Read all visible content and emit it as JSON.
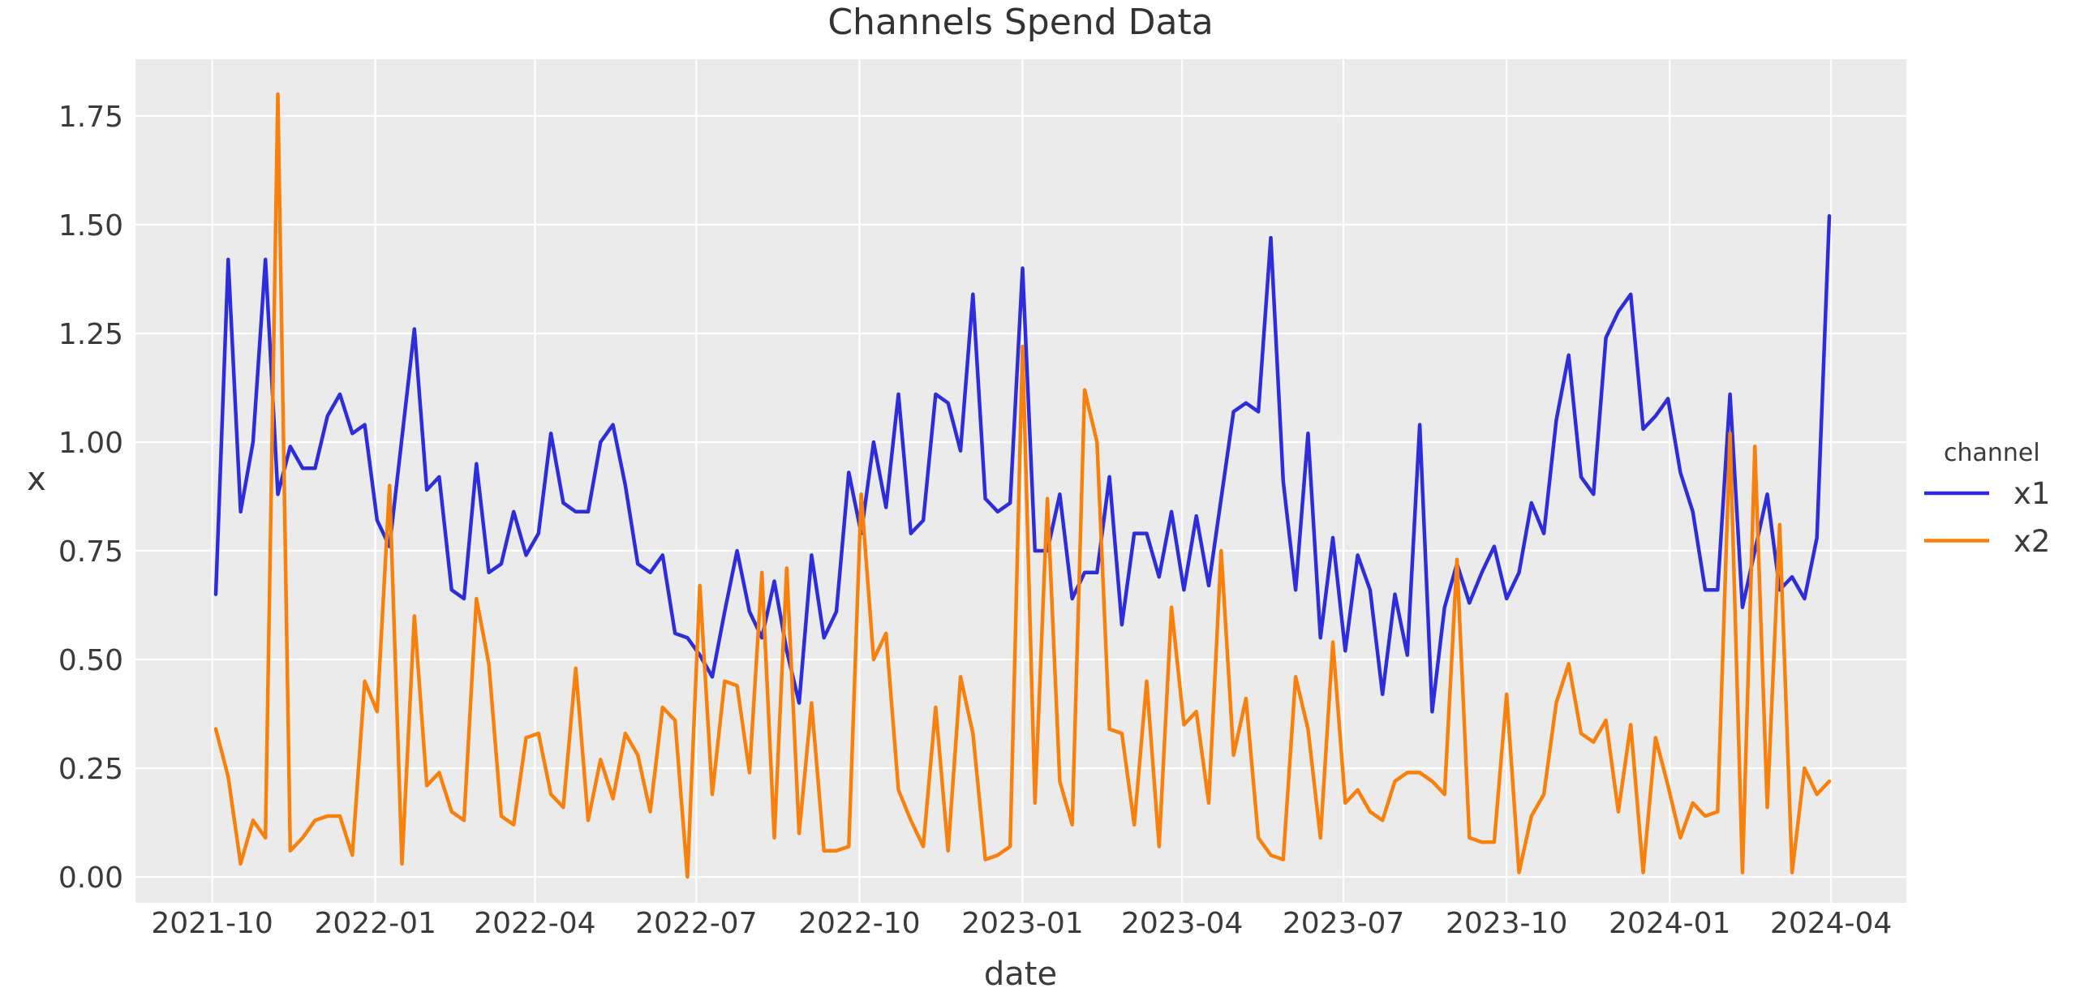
{
  "chart_data": {
    "type": "line",
    "title": "Channels Spend Data",
    "xlabel": "date",
    "ylabel": "x",
    "legend_title": "channel",
    "legend_position": "right-outside",
    "grid": "on",
    "panel_bg": "#ebebeb",
    "grid_color": "#ffffff",
    "ylim": [
      -0.06,
      1.88
    ],
    "xlim": [
      "2021-08-17",
      "2024-05-14"
    ],
    "yticks": [
      {
        "label": "0.00",
        "value": 0.0
      },
      {
        "label": "0.25",
        "value": 0.25
      },
      {
        "label": "0.50",
        "value": 0.5
      },
      {
        "label": "0.75",
        "value": 0.75
      },
      {
        "label": "1.00",
        "value": 1.0
      },
      {
        "label": "1.25",
        "value": 1.25
      },
      {
        "label": "1.50",
        "value": 1.5
      },
      {
        "label": "1.75",
        "value": 1.75
      }
    ],
    "xticks": [
      {
        "label": "2021-10",
        "date": "2021-10-01"
      },
      {
        "label": "2022-01",
        "date": "2022-01-01"
      },
      {
        "label": "2022-04",
        "date": "2022-04-01"
      },
      {
        "label": "2022-07",
        "date": "2022-07-01"
      },
      {
        "label": "2022-10",
        "date": "2022-10-01"
      },
      {
        "label": "2023-01",
        "date": "2023-01-01"
      },
      {
        "label": "2023-04",
        "date": "2023-04-01"
      },
      {
        "label": "2023-07",
        "date": "2023-07-01"
      },
      {
        "label": "2023-10",
        "date": "2023-10-01"
      },
      {
        "label": "2024-01",
        "date": "2024-01-01"
      },
      {
        "label": "2024-04",
        "date": "2024-04-01"
      }
    ],
    "dates": [
      "2021-10-03",
      "2021-10-10",
      "2021-10-17",
      "2021-10-24",
      "2021-10-31",
      "2021-11-07",
      "2021-11-14",
      "2021-11-21",
      "2021-11-28",
      "2021-12-05",
      "2021-12-12",
      "2021-12-19",
      "2021-12-26",
      "2022-01-02",
      "2022-01-09",
      "2022-01-16",
      "2022-01-23",
      "2022-01-30",
      "2022-02-06",
      "2022-02-13",
      "2022-02-20",
      "2022-02-27",
      "2022-03-06",
      "2022-03-13",
      "2022-03-20",
      "2022-03-27",
      "2022-04-03",
      "2022-04-10",
      "2022-04-17",
      "2022-04-24",
      "2022-05-01",
      "2022-05-08",
      "2022-05-15",
      "2022-05-22",
      "2022-05-29",
      "2022-06-05",
      "2022-06-12",
      "2022-06-19",
      "2022-06-26",
      "2022-07-03",
      "2022-07-10",
      "2022-07-17",
      "2022-07-24",
      "2022-07-31",
      "2022-08-07",
      "2022-08-14",
      "2022-08-21",
      "2022-08-28",
      "2022-09-04",
      "2022-09-11",
      "2022-09-18",
      "2022-09-25",
      "2022-10-02",
      "2022-10-09",
      "2022-10-16",
      "2022-10-23",
      "2022-10-30",
      "2022-11-06",
      "2022-11-13",
      "2022-11-20",
      "2022-11-27",
      "2022-12-04",
      "2022-12-11",
      "2022-12-18",
      "2022-12-25",
      "2023-01-01",
      "2023-01-08",
      "2023-01-15",
      "2023-01-22",
      "2023-01-29",
      "2023-02-05",
      "2023-02-12",
      "2023-02-19",
      "2023-02-26",
      "2023-03-05",
      "2023-03-12",
      "2023-03-19",
      "2023-03-26",
      "2023-04-02",
      "2023-04-09",
      "2023-04-16",
      "2023-04-23",
      "2023-04-30",
      "2023-05-07",
      "2023-05-14",
      "2023-05-21",
      "2023-05-28",
      "2023-06-04",
      "2023-06-11",
      "2023-06-18",
      "2023-06-25",
      "2023-07-02",
      "2023-07-09",
      "2023-07-16",
      "2023-07-23",
      "2023-07-30",
      "2023-08-06",
      "2023-08-13",
      "2023-08-20",
      "2023-08-27",
      "2023-09-03",
      "2023-09-10",
      "2023-09-17",
      "2023-09-24",
      "2023-10-01",
      "2023-10-08",
      "2023-10-15",
      "2023-10-22",
      "2023-10-29",
      "2023-11-05",
      "2023-11-12",
      "2023-11-19",
      "2023-11-26",
      "2023-12-03",
      "2023-12-10",
      "2023-12-17",
      "2023-12-24",
      "2023-12-31",
      "2024-01-07",
      "2024-01-14",
      "2024-01-21",
      "2024-01-28",
      "2024-02-04",
      "2024-02-11",
      "2024-02-18",
      "2024-02-25",
      "2024-03-03",
      "2024-03-10",
      "2024-03-17",
      "2024-03-24",
      "2024-03-31"
    ],
    "series": [
      {
        "name": "x1",
        "color": "#2d2ddc",
        "values": [
          0.65,
          1.42,
          0.84,
          1.0,
          1.42,
          0.88,
          0.99,
          0.94,
          0.94,
          1.06,
          1.11,
          1.02,
          1.04,
          0.82,
          0.76,
          1.01,
          1.26,
          0.89,
          0.92,
          0.66,
          0.64,
          0.95,
          0.7,
          0.72,
          0.84,
          0.74,
          0.79,
          1.02,
          0.86,
          0.84,
          0.84,
          1.0,
          1.04,
          0.9,
          0.72,
          0.7,
          0.74,
          0.56,
          0.55,
          0.51,
          0.46,
          0.61,
          0.75,
          0.61,
          0.55,
          0.68,
          0.52,
          0.4,
          0.74,
          0.55,
          0.61,
          0.93,
          0.79,
          1.0,
          0.85,
          1.11,
          0.79,
          0.82,
          1.11,
          1.09,
          0.98,
          1.34,
          0.87,
          0.84,
          0.86,
          1.4,
          0.75,
          0.75,
          0.88,
          0.64,
          0.7,
          0.7,
          0.92,
          0.58,
          0.79,
          0.79,
          0.69,
          0.84,
          0.66,
          0.83,
          0.67,
          0.87,
          1.07,
          1.09,
          1.07,
          1.47,
          0.91,
          0.66,
          1.02,
          0.55,
          0.78,
          0.52,
          0.74,
          0.66,
          0.42,
          0.65,
          0.51,
          1.04,
          0.38,
          0.62,
          0.72,
          0.63,
          0.7,
          0.76,
          0.64,
          0.7,
          0.86,
          0.79,
          1.05,
          1.2,
          0.92,
          0.88,
          1.24,
          1.3,
          1.34,
          1.03,
          1.06,
          1.1,
          0.93,
          0.84,
          0.66,
          0.66,
          1.11,
          0.62,
          0.75,
          0.88,
          0.66,
          0.69,
          0.64,
          0.78,
          1.52
        ]
      },
      {
        "name": "x2",
        "color": "#f8810e",
        "values": [
          0.34,
          0.23,
          0.03,
          0.13,
          0.09,
          1.8,
          0.06,
          0.09,
          0.13,
          0.14,
          0.14,
          0.05,
          0.45,
          0.38,
          0.9,
          0.03,
          0.6,
          0.21,
          0.24,
          0.15,
          0.13,
          0.64,
          0.49,
          0.14,
          0.12,
          0.32,
          0.33,
          0.19,
          0.16,
          0.48,
          0.13,
          0.27,
          0.18,
          0.33,
          0.28,
          0.15,
          0.39,
          0.36,
          0.0,
          0.67,
          0.19,
          0.45,
          0.44,
          0.24,
          0.7,
          0.09,
          0.71,
          0.1,
          0.4,
          0.06,
          0.06,
          0.07,
          0.88,
          0.5,
          0.56,
          0.2,
          0.13,
          0.07,
          0.39,
          0.06,
          0.46,
          0.33,
          0.04,
          0.05,
          0.07,
          1.22,
          0.17,
          0.87,
          0.22,
          0.12,
          1.12,
          1.0,
          0.34,
          0.33,
          0.12,
          0.45,
          0.07,
          0.62,
          0.35,
          0.38,
          0.17,
          0.75,
          0.28,
          0.41,
          0.09,
          0.05,
          0.04,
          0.46,
          0.34,
          0.09,
          0.54,
          0.17,
          0.2,
          0.15,
          0.13,
          0.22,
          0.24,
          0.24,
          0.22,
          0.19,
          0.73,
          0.09,
          0.08,
          0.08,
          0.42,
          0.01,
          0.14,
          0.19,
          0.4,
          0.49,
          0.33,
          0.31,
          0.36,
          0.15,
          0.35,
          0.01,
          0.32,
          0.21,
          0.09,
          0.17,
          0.14,
          0.15,
          1.02,
          0.01,
          0.99,
          0.16,
          0.81,
          0.01,
          0.25,
          0.19,
          0.22
        ]
      }
    ]
  }
}
